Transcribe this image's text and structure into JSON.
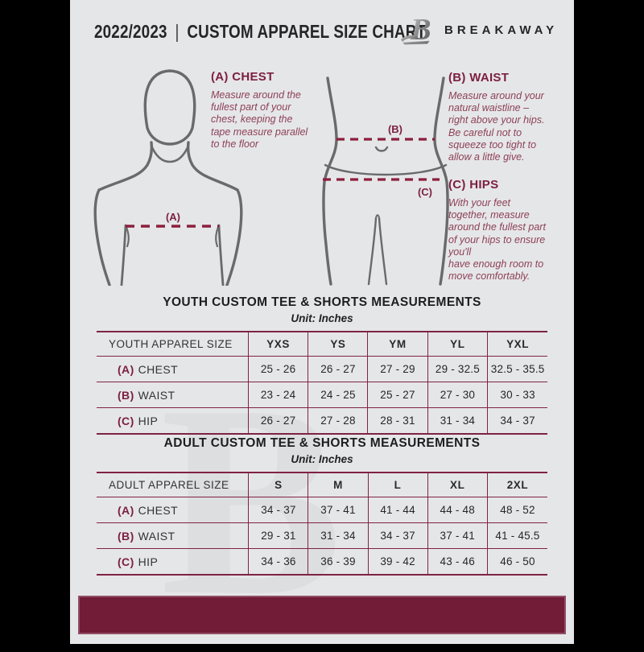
{
  "colors": {
    "background": "#e5e6e8",
    "pillarbox": "#000000",
    "brand_maroon": "#7c1f3e",
    "table_rule": "#7f2342",
    "footer_bar": "#721c38",
    "figure_outline": "#6a6a6a"
  },
  "header": {
    "year": "2022/2023",
    "separator": "|",
    "title": "CUSTOM APPAREL SIZE CHART",
    "brand": "BREAKAWAY",
    "logo_icon": "breakaway-b-logo"
  },
  "watermark": "B",
  "figures": {
    "chest_label": "(A)",
    "waist_label": "(B)",
    "hips_label": "(C)"
  },
  "instructions": [
    {
      "id": "A",
      "label": "(A) CHEST",
      "text": "Measure around the\nfullest part of your\nchest, keeping the\ntape measure parallel\nto the floor"
    },
    {
      "id": "B",
      "label": "(B) WAIST",
      "text": "Measure around your\nnatural waistline –\nright above your hips.\nBe careful not to\nsqueeze too tight to\nallow a little give."
    },
    {
      "id": "C",
      "label": "(C) HIPS",
      "text": "With your feet\ntogether, measure\naround the fullest part\nof your hips to ensure\nyou'll\nhave enough room to\nmove comfortably."
    }
  ],
  "tables": [
    {
      "title": "YOUTH CUSTOM TEE & SHORTS MEASUREMENTS",
      "unit": "Unit: Inches",
      "header": [
        "YOUTH APPAREL SIZE",
        "YXS",
        "YS",
        "YM",
        "YL",
        "YXL"
      ],
      "rows": [
        {
          "key": "(A)",
          "label": "CHEST",
          "values": [
            "25 - 26",
            "26 - 27",
            "27 - 29",
            "29 - 32.5",
            "32.5 - 35.5"
          ]
        },
        {
          "key": "(B)",
          "label": "WAIST",
          "values": [
            "23 - 24",
            "24 - 25",
            "25 - 27",
            "27 - 30",
            "30 - 33"
          ]
        },
        {
          "key": "(C)",
          "label": "HIP",
          "values": [
            "26 - 27",
            "27 - 28",
            "28 - 31",
            "31 - 34",
            "34 - 37"
          ]
        }
      ]
    },
    {
      "title": "ADULT CUSTOM TEE & SHORTS MEASUREMENTS",
      "unit": "Unit: Inches",
      "header": [
        "ADULT APPAREL SIZE",
        "S",
        "M",
        "L",
        "XL",
        "2XL"
      ],
      "rows": [
        {
          "key": "(A)",
          "label": "CHEST",
          "values": [
            "34 - 37",
            "37 - 41",
            "41 - 44",
            "44 - 48",
            "48 - 52"
          ]
        },
        {
          "key": "(B)",
          "label": "WAIST",
          "values": [
            "29 - 31",
            "31 - 34",
            "34 - 37",
            "37 - 41",
            "41 - 45.5"
          ]
        },
        {
          "key": "(C)",
          "label": "HIP",
          "values": [
            "34 - 36",
            "36 - 39",
            "39 - 42",
            "43 - 46",
            "46 - 50"
          ]
        }
      ]
    }
  ]
}
